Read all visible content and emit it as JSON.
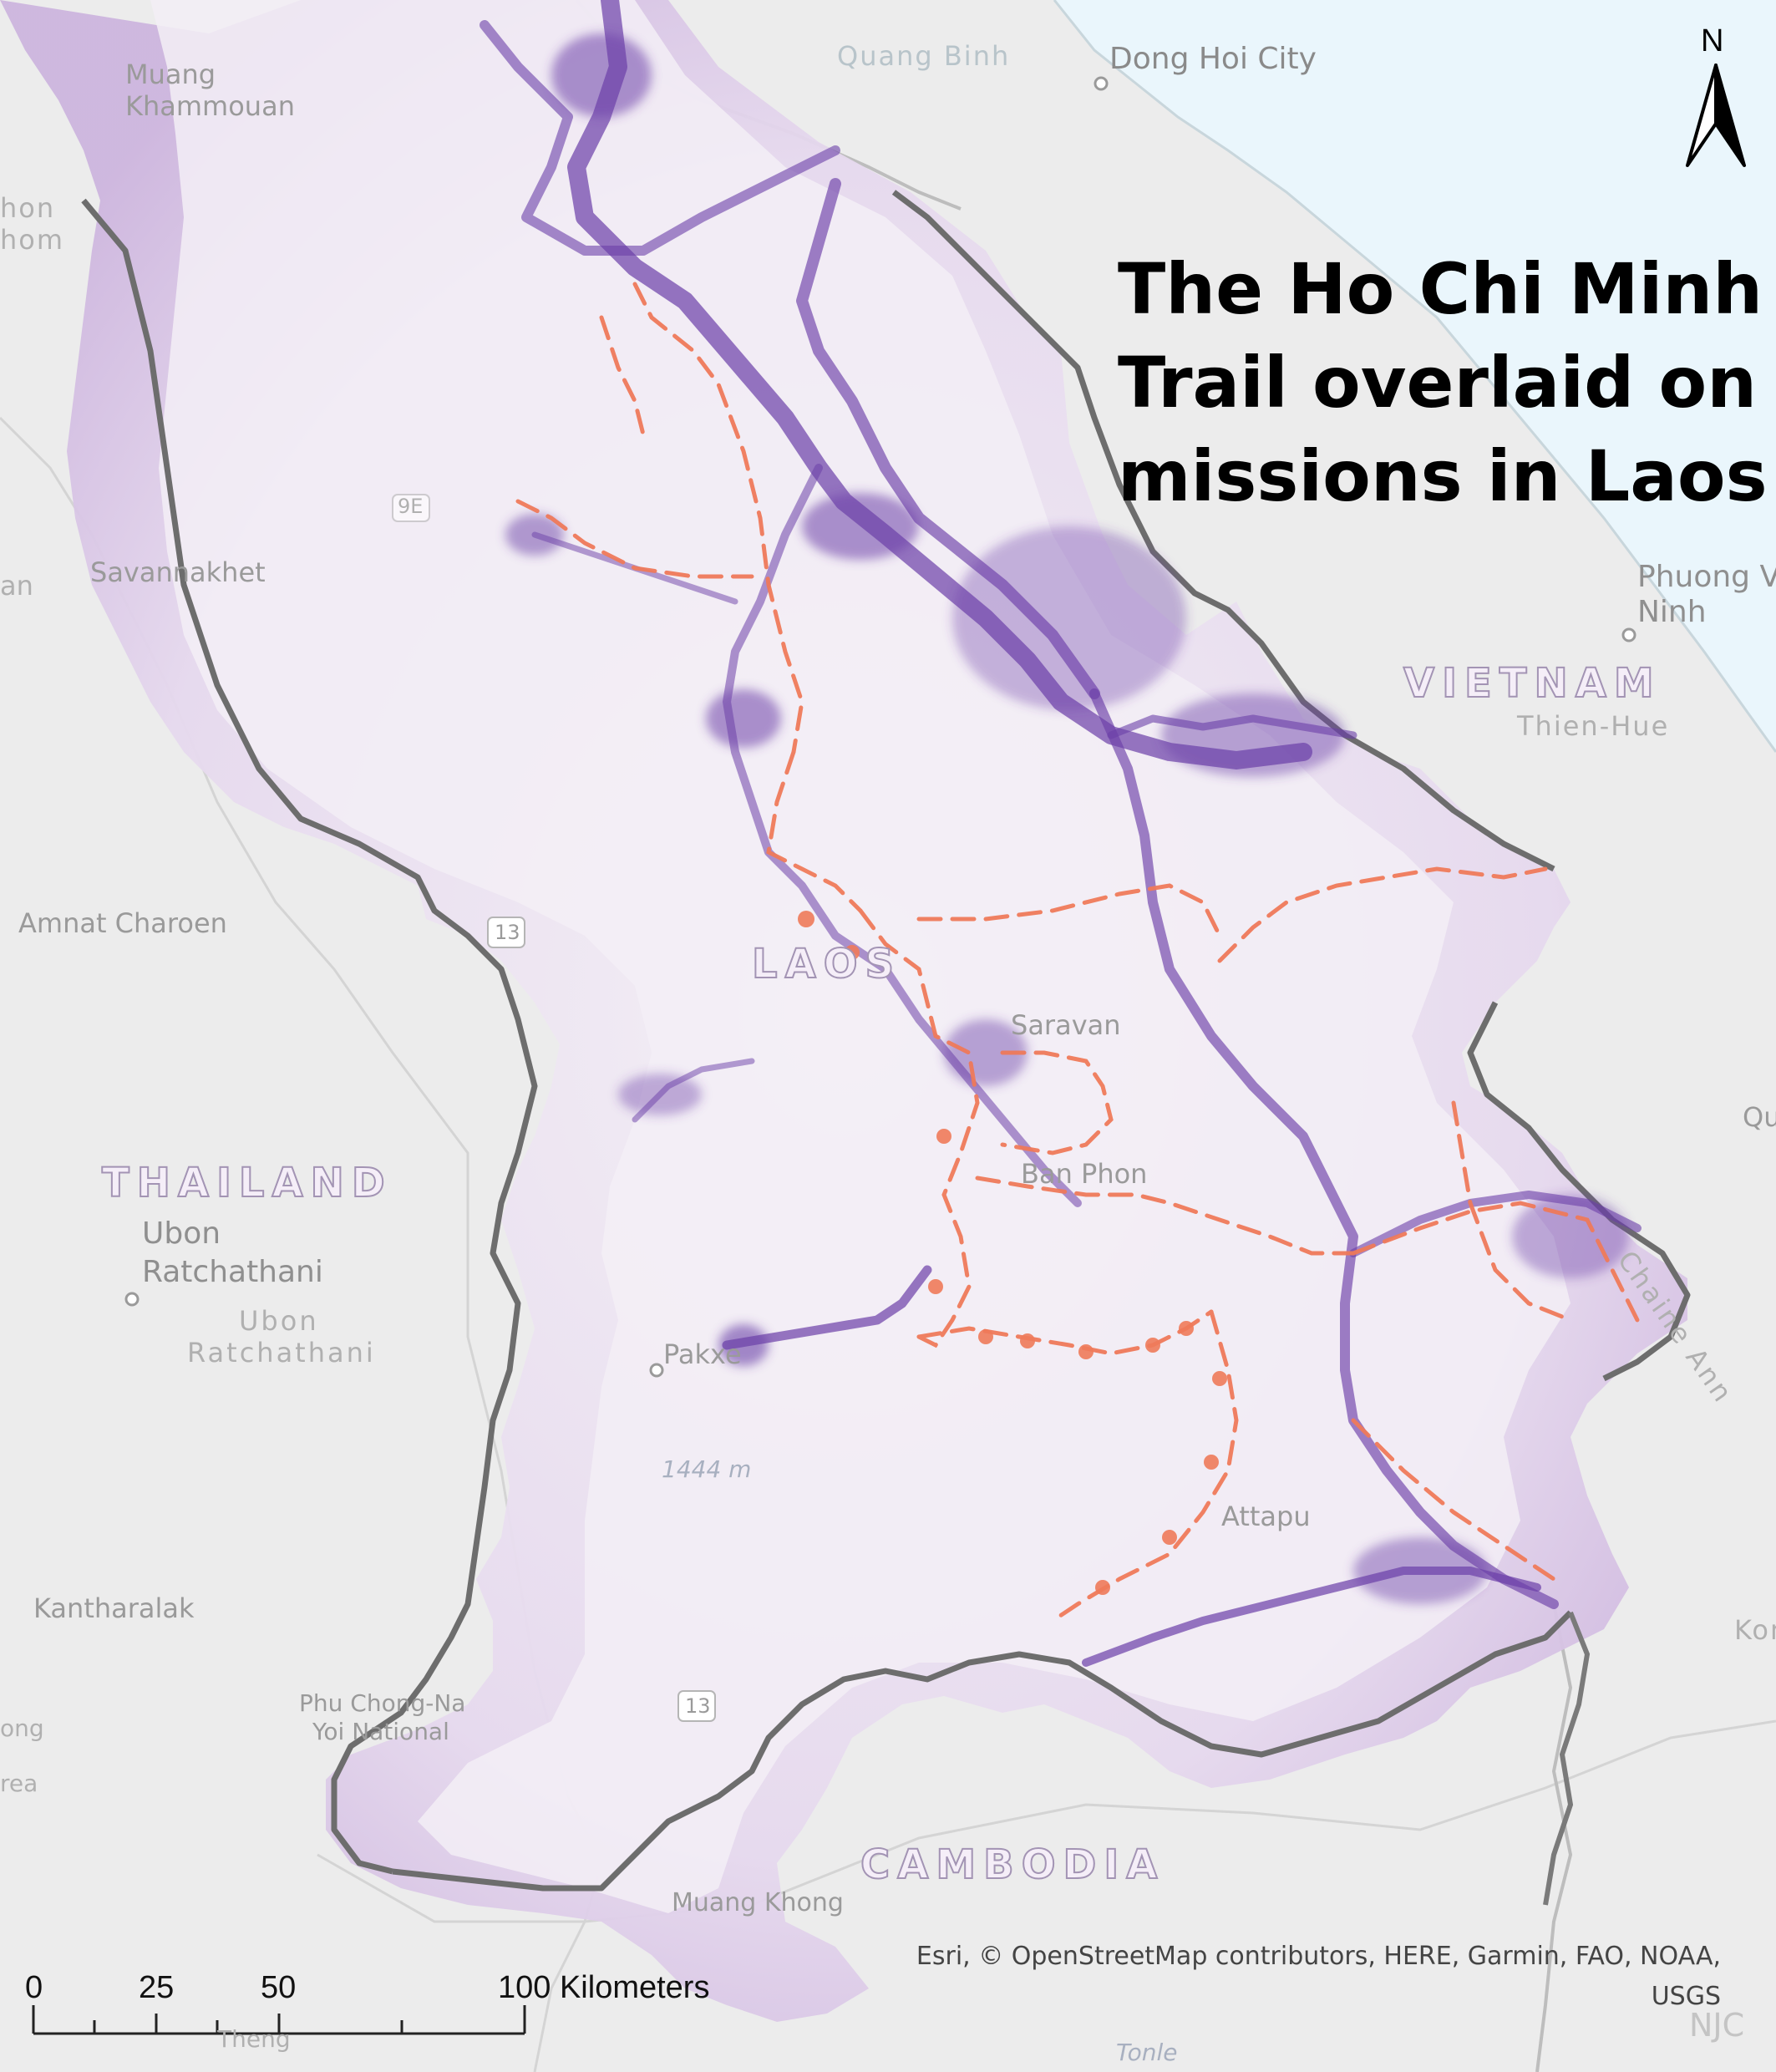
{
  "title": {
    "line1": "The Ho Chi Minh",
    "line2": "Trail overlaid on",
    "line3": "missions in Laos"
  },
  "north_arrow": {
    "label": "N",
    "icon": "north-arrow-icon"
  },
  "countries": {
    "laos": "LAOS",
    "vietnam": "VIETNAM",
    "thailand": "THAILAND",
    "cambodia": "CAMBODIA"
  },
  "places": {
    "quang_binh": "Quang Binh",
    "dong_hoi": "Dong Hoi City",
    "muang_khammouan_1": "Muang",
    "muang_khammouan_2": "Khammouan",
    "savannakhet": "Savannakhet",
    "phuong_ninh_1": "Phuong Vi",
    "phuong_ninh_2": "Ninh",
    "thien_hue": "Thien-Hue",
    "amnat_charoen": "Amnat Charoen",
    "saravan": "Saravan",
    "ban_phon": "Ban Phon",
    "ubon_city_1": "Ubon",
    "ubon_city_2": "Ratchathani",
    "ubon_prov_1": "Ubon",
    "ubon_prov_2": "Ratchathani",
    "pakxe": "Pakxe",
    "elevation": "1444 m",
    "attapu": "Attapu",
    "kantharalak": "Kantharalak",
    "phu_chong_1": "Phu Chong-Na",
    "phu_chong_2": "Yoi National",
    "muang_khong": "Muang Khong",
    "chaine": "Chaine Ann",
    "kon": "Kon",
    "route_13_a": "13",
    "route_13_b": "13",
    "route_9": "9E",
    "nom_1": "hon",
    "nom_2": "hom",
    "edge_an": "an",
    "edge_ong": "ong",
    "edge_rea": "rea",
    "edge_qu": "Qu",
    "theng": "Theng",
    "tonle": "Tonle",
    "njc": "NJC"
  },
  "attribution": {
    "line1": "Esri, © OpenStreetMap contributors, HERE, Garmin, FAO, NOAA,",
    "line2": "USGS"
  },
  "scale_bar": {
    "ticks": [
      "0",
      "25",
      "50",
      "100 Kilometers"
    ],
    "tick_values_km": [
      0,
      25,
      50,
      100
    ],
    "minor_ticks_km": [
      0,
      12.5,
      25,
      37.5,
      50,
      100
    ]
  },
  "colors": {
    "base": "#ececec",
    "sea": "#eaf6fc",
    "mission_fill": "#d7c6e6",
    "mission_line": "#6b3fa8",
    "trail": "#ef7a5a",
    "border": "#6d6d6d"
  },
  "legend_layers": [
    "missions-density",
    "ho-chi-minh-trail",
    "country-borders"
  ]
}
